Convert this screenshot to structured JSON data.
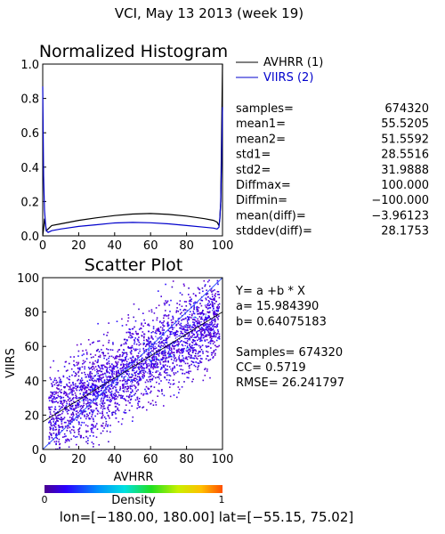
{
  "header": {
    "title": "VCI,  May 13 2013 (week 19)"
  },
  "chart_data": [
    {
      "type": "line",
      "title": "Normalized Histogram",
      "xlim": [
        0,
        100
      ],
      "ylim": [
        0,
        1.0
      ],
      "xticks": [
        "0",
        "20",
        "40",
        "60",
        "80",
        "100"
      ],
      "yticks": [
        "0.0",
        "0.2",
        "0.4",
        "0.6",
        "0.8",
        "1.0"
      ],
      "legend_placement": "outside-right",
      "series": [
        {
          "name": "AVHRR (1)",
          "color": "#000000",
          "x": [
            0,
            0.5,
            1,
            1.5,
            2,
            3,
            5,
            10,
            20,
            30,
            40,
            50,
            60,
            70,
            80,
            90,
            95,
            97,
            98,
            98.5,
            99,
            99.5,
            100
          ],
          "y": [
            0.0,
            0.04,
            0.1,
            0.07,
            0.03,
            0.04,
            0.06,
            0.07,
            0.09,
            0.105,
            0.118,
            0.127,
            0.13,
            0.125,
            0.115,
            0.1,
            0.09,
            0.08,
            0.06,
            0.1,
            0.2,
            0.6,
            1.0
          ]
        },
        {
          "name": "VIIRS (2)",
          "color": "#0000cc",
          "x": [
            0,
            0.5,
            1,
            1.5,
            2,
            3,
            5,
            10,
            20,
            30,
            40,
            50,
            60,
            70,
            80,
            90,
            95,
            97,
            98,
            98.5,
            99,
            99.5,
            100
          ],
          "y": [
            0.87,
            0.35,
            0.15,
            0.08,
            0.03,
            0.02,
            0.03,
            0.04,
            0.055,
            0.065,
            0.075,
            0.078,
            0.076,
            0.07,
            0.06,
            0.05,
            0.045,
            0.04,
            0.05,
            0.1,
            0.2,
            0.45,
            0.75
          ]
        }
      ],
      "stats": [
        {
          "label": "samples=",
          "value": "674320"
        },
        {
          "label": "mean1=",
          "value": "55.5205"
        },
        {
          "label": "mean2=",
          "value": "51.5592"
        },
        {
          "label": "std1=",
          "value": "28.5516"
        },
        {
          "label": "std2=",
          "value": "31.9888"
        },
        {
          "label": "Diffmax=",
          "value": "100.000"
        },
        {
          "label": "Diffmin=",
          "value": "−100.000"
        },
        {
          "label": "mean(diff)=",
          "value": "−3.96123"
        },
        {
          "label": "stddev(diff)=",
          "value": "28.1753"
        }
      ]
    },
    {
      "type": "scatter",
      "title": "Scatter Plot",
      "xlabel": "AVHRR",
      "ylabel": "VIIRS",
      "xlim": [
        0,
        100
      ],
      "ylim": [
        0,
        100
      ],
      "xticks": [
        "0",
        "20",
        "40",
        "60",
        "80",
        "100"
      ],
      "yticks": [
        "0",
        "20",
        "40",
        "60",
        "80",
        "100"
      ],
      "regression": {
        "a": 15.98439,
        "b": 0.64075183
      },
      "density_colorbar": {
        "label": "Density",
        "min_label": "0",
        "max_label": "1"
      },
      "stats_lines": [
        "Y= a +b * X",
        "a= 15.984390",
        "b= 0.64075183",
        "",
        "Samples= 674320",
        "CC=  0.5719",
        "RMSE= 26.241797"
      ]
    }
  ],
  "footer": {
    "extent": "lon=[−180.00, 180.00] lat=[−55.15, 75.02]"
  },
  "colors": {
    "avhrr": "#000000",
    "viirs": "#0000cc",
    "scatter_main": "#5a00d8"
  }
}
